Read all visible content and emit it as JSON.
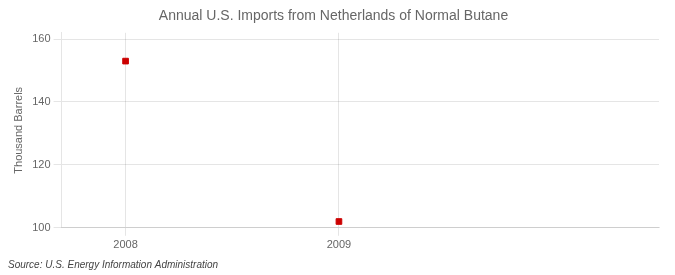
{
  "chart_data": {
    "type": "scatter",
    "title": "Annual U.S. Imports from Netherlands of Normal Butane",
    "ylabel": "Thousand Barrels",
    "annotations": [
      "Source: U.S. Energy Information Administration"
    ],
    "x": [
      2008,
      2009
    ],
    "values": [
      153,
      102
    ],
    "color": "#CC0000",
    "marker": "square",
    "xlim": [
      2007.7,
      2010.5
    ],
    "xticks": [
      2008,
      2009
    ],
    "ylim": [
      100,
      162
    ],
    "yticks": [
      100,
      120,
      140,
      160
    ],
    "grid": true
  }
}
